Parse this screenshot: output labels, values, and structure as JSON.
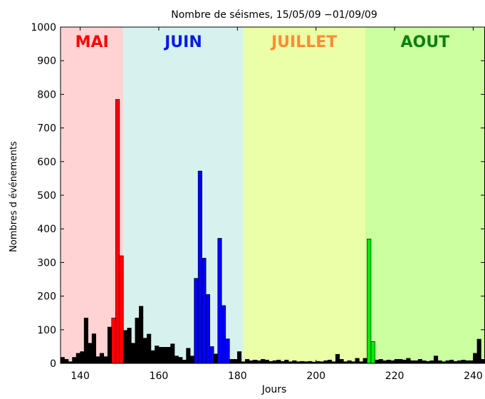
{
  "chart_data": {
    "type": "bar",
    "title": "Nombre de séismes, 15/05/09 −01/09/09",
    "xlabel": "Jours",
    "ylabel": "Nombres d événements",
    "xlim": [
      135,
      243
    ],
    "ylim": [
      0,
      1000
    ],
    "xticks": [
      140,
      160,
      180,
      200,
      220,
      240
    ],
    "yticks": [
      0,
      100,
      200,
      300,
      400,
      500,
      600,
      700,
      800,
      900,
      1000
    ],
    "grid": false,
    "months": [
      {
        "name": "MAI",
        "start": 135,
        "end": 151,
        "bg": "#ffd3d3",
        "label_color": "#ff0000"
      },
      {
        "name": "JUIN",
        "start": 151,
        "end": 181.5,
        "bg": "#d6f2ee",
        "label_color": "#0a1ce0"
      },
      {
        "name": "JUILLET",
        "start": 181.5,
        "end": 212.5,
        "bg": "#eaffa6",
        "label_color": "#ff8c33"
      },
      {
        "name": "AOUT",
        "start": 212.5,
        "end": 243,
        "bg": "#ccff9f",
        "label_color": "#0a8010"
      }
    ],
    "bar_colors": {
      "default": "#000000",
      "red": "#ff0000",
      "blue": "#0000ff",
      "green": "#00ee00"
    },
    "bars": [
      {
        "x": 135,
        "y": 18
      },
      {
        "x": 136,
        "y": 12
      },
      {
        "x": 137,
        "y": 5
      },
      {
        "x": 138,
        "y": 18
      },
      {
        "x": 139,
        "y": 30
      },
      {
        "x": 140,
        "y": 35
      },
      {
        "x": 141,
        "y": 135
      },
      {
        "x": 142,
        "y": 60
      },
      {
        "x": 143,
        "y": 88
      },
      {
        "x": 144,
        "y": 20
      },
      {
        "x": 145,
        "y": 30
      },
      {
        "x": 146,
        "y": 20
      },
      {
        "x": 147,
        "y": 108
      },
      {
        "x": 148,
        "y": 135,
        "c": "red"
      },
      {
        "x": 149,
        "y": 785,
        "c": "red"
      },
      {
        "x": 150,
        "y": 320,
        "c": "red"
      },
      {
        "x": 151,
        "y": 98
      },
      {
        "x": 152,
        "y": 105
      },
      {
        "x": 153,
        "y": 60
      },
      {
        "x": 154,
        "y": 135
      },
      {
        "x": 155,
        "y": 170
      },
      {
        "x": 156,
        "y": 75
      },
      {
        "x": 157,
        "y": 87
      },
      {
        "x": 158,
        "y": 38
      },
      {
        "x": 159,
        "y": 52
      },
      {
        "x": 160,
        "y": 48
      },
      {
        "x": 161,
        "y": 48
      },
      {
        "x": 162,
        "y": 48
      },
      {
        "x": 163,
        "y": 58
      },
      {
        "x": 164,
        "y": 22
      },
      {
        "x": 165,
        "y": 18
      },
      {
        "x": 166,
        "y": 10
      },
      {
        "x": 167,
        "y": 45
      },
      {
        "x": 168,
        "y": 22
      },
      {
        "x": 169,
        "y": 253,
        "c": "blue"
      },
      {
        "x": 170,
        "y": 572,
        "c": "blue"
      },
      {
        "x": 171,
        "y": 313,
        "c": "blue"
      },
      {
        "x": 172,
        "y": 205,
        "c": "blue"
      },
      {
        "x": 173,
        "y": 50,
        "c": "blue"
      },
      {
        "x": 174,
        "y": 28
      },
      {
        "x": 175,
        "y": 372,
        "c": "blue"
      },
      {
        "x": 176,
        "y": 172,
        "c": "blue"
      },
      {
        "x": 177,
        "y": 73,
        "c": "blue"
      },
      {
        "x": 178,
        "y": 12
      },
      {
        "x": 179,
        "y": 12
      },
      {
        "x": 180,
        "y": 35
      },
      {
        "x": 181,
        "y": 5
      },
      {
        "x": 182,
        "y": 12
      },
      {
        "x": 183,
        "y": 8
      },
      {
        "x": 184,
        "y": 10
      },
      {
        "x": 185,
        "y": 8
      },
      {
        "x": 186,
        "y": 12
      },
      {
        "x": 187,
        "y": 10
      },
      {
        "x": 188,
        "y": 6
      },
      {
        "x": 189,
        "y": 8
      },
      {
        "x": 190,
        "y": 10
      },
      {
        "x": 191,
        "y": 6
      },
      {
        "x": 192,
        "y": 10
      },
      {
        "x": 193,
        "y": 5
      },
      {
        "x": 194,
        "y": 8
      },
      {
        "x": 195,
        "y": 5
      },
      {
        "x": 196,
        "y": 6
      },
      {
        "x": 197,
        "y": 5
      },
      {
        "x": 198,
        "y": 6
      },
      {
        "x": 199,
        "y": 4
      },
      {
        "x": 200,
        "y": 6
      },
      {
        "x": 201,
        "y": 5
      },
      {
        "x": 202,
        "y": 8
      },
      {
        "x": 203,
        "y": 10
      },
      {
        "x": 204,
        "y": 5
      },
      {
        "x": 205,
        "y": 27
      },
      {
        "x": 206,
        "y": 12
      },
      {
        "x": 207,
        "y": 5
      },
      {
        "x": 208,
        "y": 8
      },
      {
        "x": 209,
        "y": 5
      },
      {
        "x": 210,
        "y": 15
      },
      {
        "x": 211,
        "y": 5
      },
      {
        "x": 212,
        "y": 15
      },
      {
        "x": 213,
        "y": 370,
        "c": "green"
      },
      {
        "x": 214,
        "y": 65,
        "c": "green"
      },
      {
        "x": 215,
        "y": 10
      },
      {
        "x": 216,
        "y": 12
      },
      {
        "x": 217,
        "y": 8
      },
      {
        "x": 218,
        "y": 10
      },
      {
        "x": 219,
        "y": 8
      },
      {
        "x": 220,
        "y": 12
      },
      {
        "x": 221,
        "y": 12
      },
      {
        "x": 222,
        "y": 10
      },
      {
        "x": 223,
        "y": 15
      },
      {
        "x": 224,
        "y": 8
      },
      {
        "x": 225,
        "y": 8
      },
      {
        "x": 226,
        "y": 12
      },
      {
        "x": 227,
        "y": 8
      },
      {
        "x": 228,
        "y": 6
      },
      {
        "x": 229,
        "y": 8
      },
      {
        "x": 230,
        "y": 22
      },
      {
        "x": 231,
        "y": 8
      },
      {
        "x": 232,
        "y": 5
      },
      {
        "x": 233,
        "y": 8
      },
      {
        "x": 234,
        "y": 10
      },
      {
        "x": 235,
        "y": 6
      },
      {
        "x": 236,
        "y": 8
      },
      {
        "x": 237,
        "y": 10
      },
      {
        "x": 238,
        "y": 8
      },
      {
        "x": 239,
        "y": 8
      },
      {
        "x": 240,
        "y": 30
      },
      {
        "x": 241,
        "y": 72
      },
      {
        "x": 242,
        "y": 12
      }
    ]
  }
}
